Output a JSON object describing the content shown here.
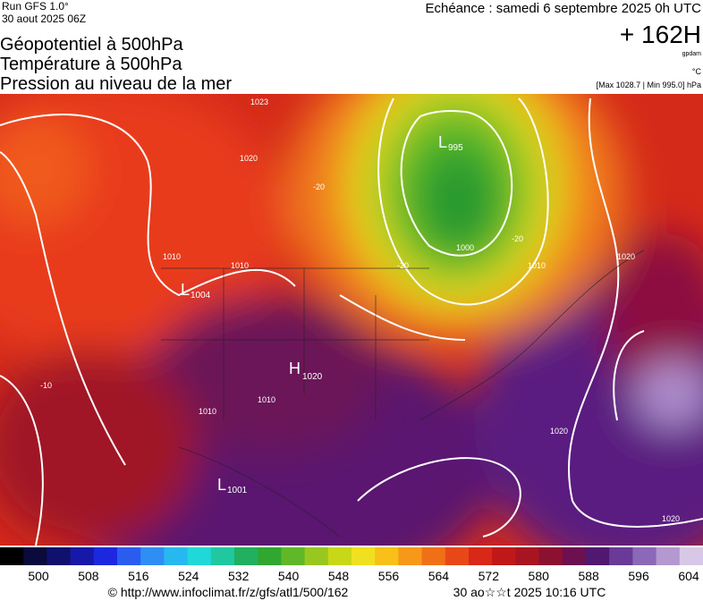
{
  "header": {
    "model": "Run GFS 1.0°",
    "run_date": "30 aout 2025 06Z",
    "valid": "Echéance : samedi 6 septembre 2025 0h UTC",
    "lead": "+ 162H",
    "unit_geo": "gpdam",
    "unit_temp": "°C",
    "range": "[Max 1028.7 | Min 995.0] hPa"
  },
  "titles": [
    "Géopotentiel à 500hPa",
    "Température à 500hPa",
    "Pression au niveau de la mer"
  ],
  "pressure_centers": [
    {
      "type": "L",
      "value": "995"
    },
    {
      "type": "L",
      "value": "1004"
    },
    {
      "type": "H",
      "value": "1020"
    },
    {
      "type": "L",
      "value": "1001"
    }
  ],
  "contour_labels": [
    "1023",
    "1020",
    "1010",
    "1010",
    "1010",
    "1010",
    "1000",
    "1020",
    "1020",
    "1020",
    "1010",
    "-20",
    "-20",
    "-20",
    "-10"
  ],
  "colorbar": {
    "ticks": [
      500,
      508,
      516,
      524,
      532,
      540,
      548,
      556,
      564,
      572,
      580,
      588,
      596,
      604
    ],
    "colors": [
      "#000000",
      "#0a0a3c",
      "#10106e",
      "#1818a8",
      "#1c28e0",
      "#2a5cf0",
      "#2f8ef4",
      "#28b8f0",
      "#20d8d8",
      "#20c8a0",
      "#20b060",
      "#30a830",
      "#60b828",
      "#98c820",
      "#c8d818",
      "#f0e020",
      "#f8c018",
      "#f89818",
      "#f07018",
      "#e84818",
      "#d82818",
      "#c01818",
      "#a81420",
      "#8c1030",
      "#6c1050",
      "#501870",
      "#6a3a98",
      "#8c68b8",
      "#b498d0",
      "#d8c8e8"
    ]
  },
  "footer": {
    "url": "© http://www.infoclimat.fr/z/gfs/atl1/500/162",
    "timestamp": "30 ao☆☆t 2025 10:16 UTC"
  }
}
